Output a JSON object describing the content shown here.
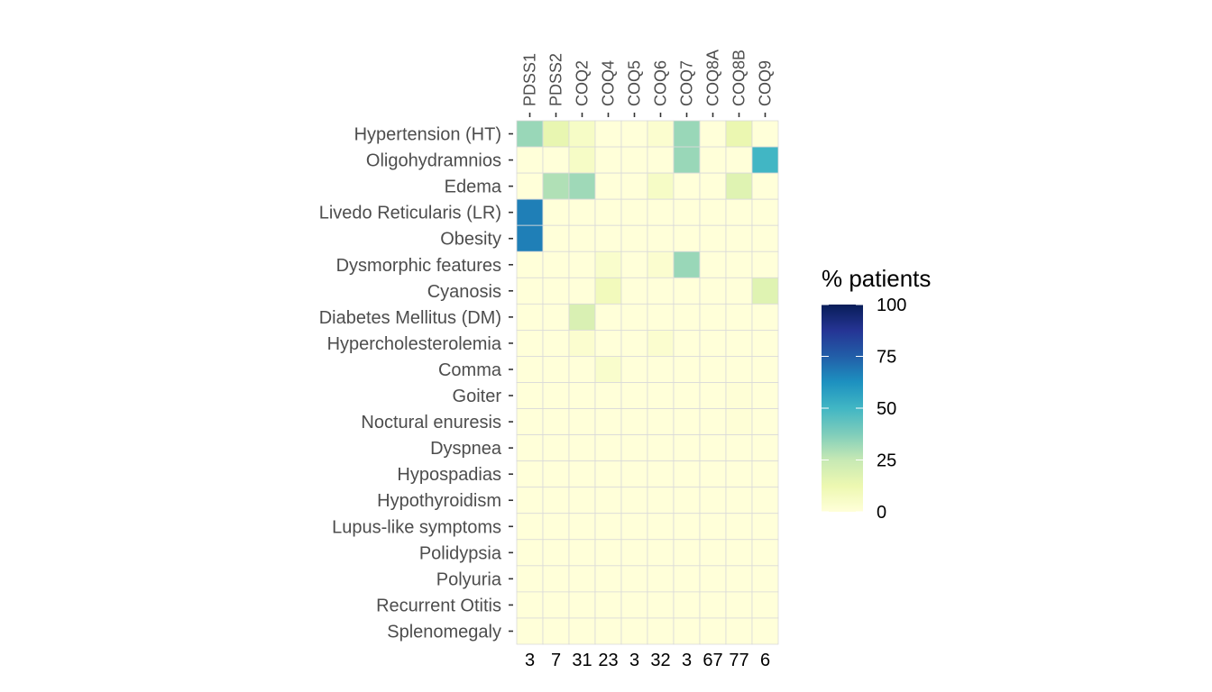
{
  "chart_data": {
    "type": "heatmap",
    "title": "",
    "xlabel": "",
    "ylabel": "",
    "columns": [
      "PDSS1",
      "PDSS2",
      "COQ2",
      "COQ4",
      "COQ5",
      "COQ6",
      "COQ7",
      "COQ8A",
      "COQ8B",
      "COQ9"
    ],
    "column_totals": [
      "3",
      "7",
      "31",
      "23",
      "3",
      "32",
      "3",
      "67",
      "77",
      "6"
    ],
    "rows": [
      "Hypertension (HT)",
      "Oligohydramnios",
      "Edema",
      "Livedo Reticularis (LR)",
      "Obesity",
      "Dysmorphic features",
      "Cyanosis",
      "Diabetes Mellitus (DM)",
      "Hypercholesterolemia",
      "Comma",
      "Goiter",
      "Noctural enuresis",
      "Dyspnea",
      "Hypospadias",
      "Hypothyroidism",
      "Lupus-like symptoms",
      "Polidypsia",
      "Polyuria",
      "Recurrent Otitis",
      "Splenomegaly"
    ],
    "values": [
      [
        33,
        14,
        6,
        0,
        0,
        3,
        33,
        0,
        13,
        0
      ],
      [
        0,
        0,
        6,
        0,
        0,
        0,
        33,
        0,
        0,
        50
      ],
      [
        0,
        29,
        32,
        0,
        0,
        6,
        0,
        0,
        17,
        0
      ],
      [
        67,
        0,
        0,
        0,
        0,
        0,
        0,
        0,
        0,
        0
      ],
      [
        67,
        0,
        0,
        0,
        0,
        0,
        0,
        0,
        0,
        0
      ],
      [
        0,
        0,
        0,
        4,
        0,
        3,
        33,
        0,
        0,
        0
      ],
      [
        0,
        0,
        0,
        9,
        0,
        0,
        0,
        0,
        0,
        17
      ],
      [
        0,
        0,
        19,
        0,
        0,
        0,
        0,
        0,
        0,
        0
      ],
      [
        0,
        0,
        3,
        0,
        0,
        3,
        0,
        0,
        0,
        0
      ],
      [
        0,
        0,
        0,
        4,
        0,
        0,
        0,
        0,
        0,
        0
      ],
      [
        0,
        0,
        0,
        0,
        0,
        0,
        0,
        0,
        1,
        0
      ],
      [
        0,
        0,
        0,
        0,
        0,
        0,
        0,
        0,
        1,
        0
      ],
      [
        0,
        0,
        0,
        0,
        0,
        0,
        0,
        0,
        0,
        0
      ],
      [
        0,
        0,
        0,
        0,
        0,
        0,
        0,
        0,
        0,
        0
      ],
      [
        0,
        0,
        0,
        0,
        0,
        0,
        0,
        0,
        0,
        0
      ],
      [
        0,
        0,
        0,
        0,
        0,
        0,
        0,
        0,
        0,
        0
      ],
      [
        0,
        0,
        0,
        0,
        0,
        0,
        0,
        0,
        0,
        0
      ],
      [
        0,
        0,
        0,
        0,
        0,
        0,
        0,
        0,
        0,
        0
      ],
      [
        0,
        0,
        0,
        0,
        0,
        0,
        0,
        0,
        0,
        0
      ],
      [
        0,
        0,
        0,
        0,
        0,
        0,
        0,
        0,
        0,
        0
      ]
    ],
    "color_range": [
      0,
      100
    ],
    "palette": [
      "#ffffd9",
      "#edf8b1",
      "#c7e9b4",
      "#7fcdbb",
      "#41b6c4",
      "#1d91c0",
      "#225ea8",
      "#253494",
      "#081d58"
    ],
    "grid_color": "#d9d9d9",
    "legend": {
      "title": "% patients",
      "ticks": [
        0,
        25,
        50,
        75,
        100
      ],
      "position": "right"
    }
  }
}
